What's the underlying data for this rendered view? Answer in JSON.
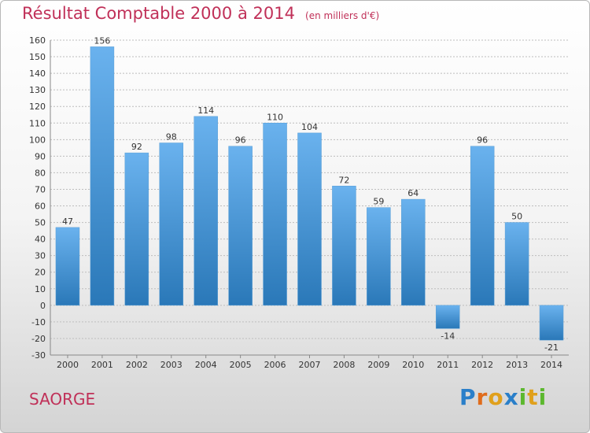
{
  "page": {
    "title": "Résultat Comptable 2000 à 2014",
    "subtitle": "(en milliers d'€)",
    "commune": "SAORGE",
    "logo": {
      "letters": [
        "P",
        "r",
        "o",
        "x",
        "i",
        "t",
        "i"
      ],
      "colors": [
        "#2a7fc9",
        "#e06c1c",
        "#e0a01c",
        "#2a7fc9",
        "#5cb82e",
        "#e0a01c",
        "#5cb82e"
      ]
    }
  },
  "chart_data": {
    "type": "bar",
    "categories": [
      "2000",
      "2001",
      "2002",
      "2003",
      "2004",
      "2005",
      "2006",
      "2007",
      "2008",
      "2009",
      "2010",
      "2011",
      "2012",
      "2013",
      "2014"
    ],
    "values": [
      47,
      156,
      92,
      98,
      114,
      96,
      110,
      104,
      72,
      59,
      64,
      -14,
      96,
      50,
      -21
    ],
    "title": "Résultat Comptable 2000 à 2014",
    "xlabel": "",
    "ylabel": "",
    "ylim": [
      -30,
      160
    ],
    "yticks": [
      -30,
      -20,
      -10,
      0,
      10,
      20,
      30,
      40,
      50,
      60,
      70,
      80,
      90,
      100,
      110,
      120,
      130,
      140,
      150,
      160
    ],
    "grid": true,
    "bar_color_light": "#6ab2ee",
    "bar_color_dark": "#2a78b8"
  }
}
